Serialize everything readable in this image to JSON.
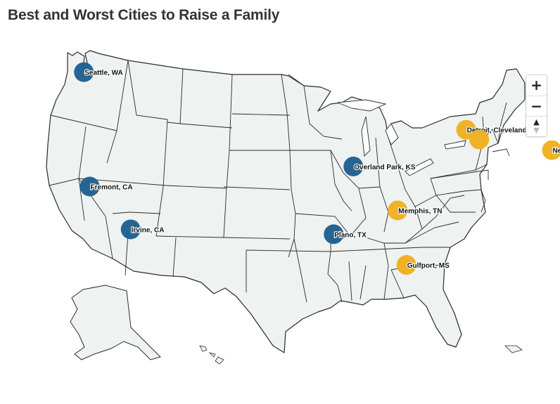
{
  "title": "Best and Worst Cities to Raise a Family",
  "colors": {
    "best": "#1f6090",
    "worst": "#f0b020",
    "land": "#eef2f1",
    "border": "#2b2b2b"
  },
  "controls": {
    "zoom_in": "+",
    "zoom_out": "−",
    "compass_up": "▲",
    "compass_down": "▼"
  },
  "cities": [
    {
      "label": "Seattle, WA",
      "group": "best",
      "lat": 47.61,
      "lon": -122.33
    },
    {
      "label": "Fremont, CA",
      "group": "best",
      "lat": 37.55,
      "lon": -121.99
    },
    {
      "label": "Irvine, CA",
      "group": "best",
      "lat": 33.68,
      "lon": -117.83
    },
    {
      "label": "Overland Park, KS",
      "group": "best",
      "lat": 38.98,
      "lon": -94.67
    },
    {
      "label": "Plano, TX",
      "group": "best",
      "lat": 33.02,
      "lon": -96.7
    },
    {
      "label": "Detroit, Cleveland",
      "group": "worst",
      "lat": 42.33,
      "lon": -83.05
    },
    {
      "label": "",
      "group": "worst",
      "lat": 41.5,
      "lon": -81.69
    },
    {
      "label": "Newark, NJ",
      "group": "worst",
      "lat": 40.74,
      "lon": -74.17
    },
    {
      "label": "Memphis, TN",
      "group": "worst",
      "lat": 35.15,
      "lon": -90.05
    },
    {
      "label": "Gulfport, MS",
      "group": "worst",
      "lat": 30.37,
      "lon": -89.09
    }
  ]
}
